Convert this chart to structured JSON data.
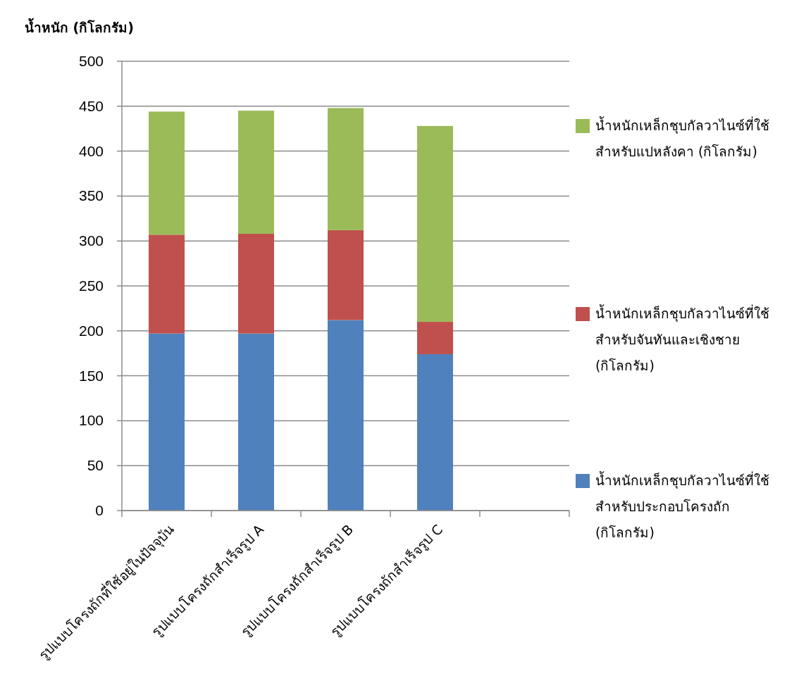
{
  "chart_data": {
    "type": "bar",
    "stacked": true,
    "ylabel": "น้ำหนัก (กิโลกรัม)",
    "categories": [
      "รูปแบบโครงถักที่ใช้อยู่ในปัจจุบัน",
      "รูปแบบโครงถักสำเร็จรูป A",
      "รูปแบบโครงถักสำเร็จรูป B",
      "รูปแบบโครงถักสำเร็จรูป C",
      null
    ],
    "series": [
      {
        "name": "น้ำหนักเหล็กชุบกัลวาไนซ์ที่ใช้สำหรับประกอบโครงถัก (กิโลกรัม)",
        "color": "#4f81bd",
        "values": [
          197,
          197,
          212,
          174,
          null
        ]
      },
      {
        "name": "น้ำหนักเหล็กชุบกัลวาไนซ์ที่ใช้สำหรับจันทันและเชิงชาย (กิโลกรัม)",
        "color": "#c0504d",
        "values": [
          110,
          111,
          100,
          36,
          null
        ]
      },
      {
        "name": "น้ำหนักเหล็กชุบกัลวาไนซ์ที่ใช้สำหรับแปหลังคา (กิโลกรัม)",
        "color": "#9bbb59",
        "values": [
          137,
          137,
          136,
          218,
          null
        ]
      }
    ],
    "ylim": [
      0,
      500
    ],
    "yticks": [
      0,
      50,
      100,
      150,
      200,
      250,
      300,
      350,
      400,
      450,
      500
    ],
    "grid": "y",
    "legend": "right"
  }
}
